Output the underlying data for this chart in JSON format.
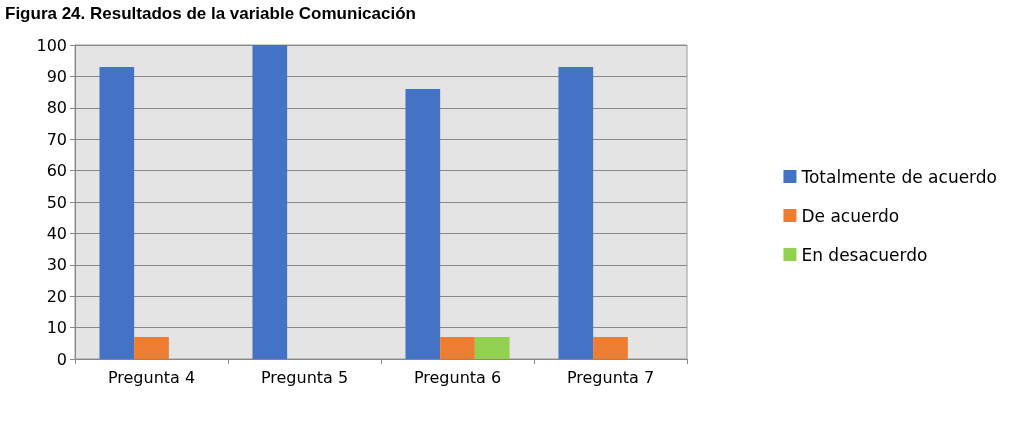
{
  "chart_data": {
    "type": "bar",
    "title": "Figura 24. Resultados de la variable Comunicación",
    "categories": [
      "Pregunta 4",
      "Pregunta 5",
      "Pregunta 6",
      "Pregunta 7"
    ],
    "series": [
      {
        "name": "Totalmente de acuerdo",
        "color": "#4472c4",
        "values": [
          93,
          100,
          86,
          93
        ]
      },
      {
        "name": "De acuerdo",
        "color": "#ed7d31",
        "values": [
          7,
          0,
          7,
          7
        ]
      },
      {
        "name": "En desacuerdo",
        "color": "#92d050",
        "values": [
          0,
          0,
          7,
          0
        ]
      }
    ],
    "ylim": [
      0,
      100
    ],
    "yticks": [
      0,
      10,
      20,
      30,
      40,
      50,
      60,
      70,
      80,
      90,
      100
    ],
    "grid": "y",
    "legend": "right"
  }
}
